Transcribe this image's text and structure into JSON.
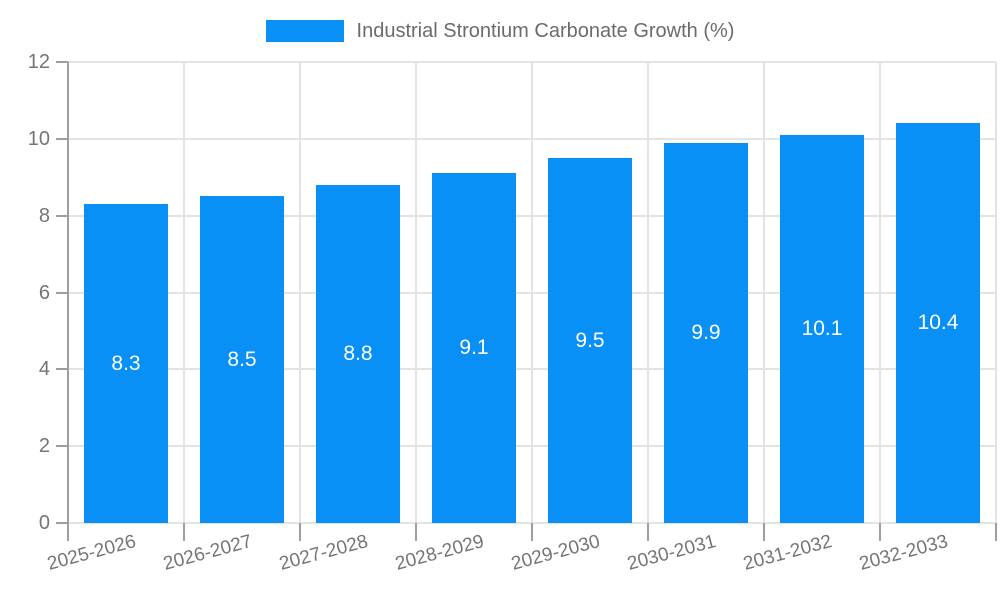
{
  "colors": {
    "bar": "#0890F6",
    "grid": "#e3e3e3",
    "axis": "#9e9e9e",
    "tick_text": "#757575",
    "legend_text": "#6b6b6b",
    "value_text": "#ffffff",
    "background": "#ffffff"
  },
  "chart_data": {
    "type": "bar",
    "title": "",
    "legend": "Industrial Strontium Carbonate Growth (%)",
    "legend_position": "top-center",
    "categories": [
      "2025-2026",
      "2026-2027",
      "2027-2028",
      "2028-2029",
      "2029-2030",
      "2030-2031",
      "2031-2032",
      "2032-2033"
    ],
    "values": [
      8.3,
      8.5,
      8.8,
      9.1,
      9.5,
      9.9,
      10.1,
      10.4
    ],
    "xlabel": "",
    "ylabel": "",
    "ylim": [
      0,
      12
    ],
    "yticks": [
      0,
      2,
      4,
      6,
      8,
      10,
      12
    ],
    "grid": true,
    "value_labels_inside_bars": true,
    "x_label_rotation_deg": -15
  }
}
